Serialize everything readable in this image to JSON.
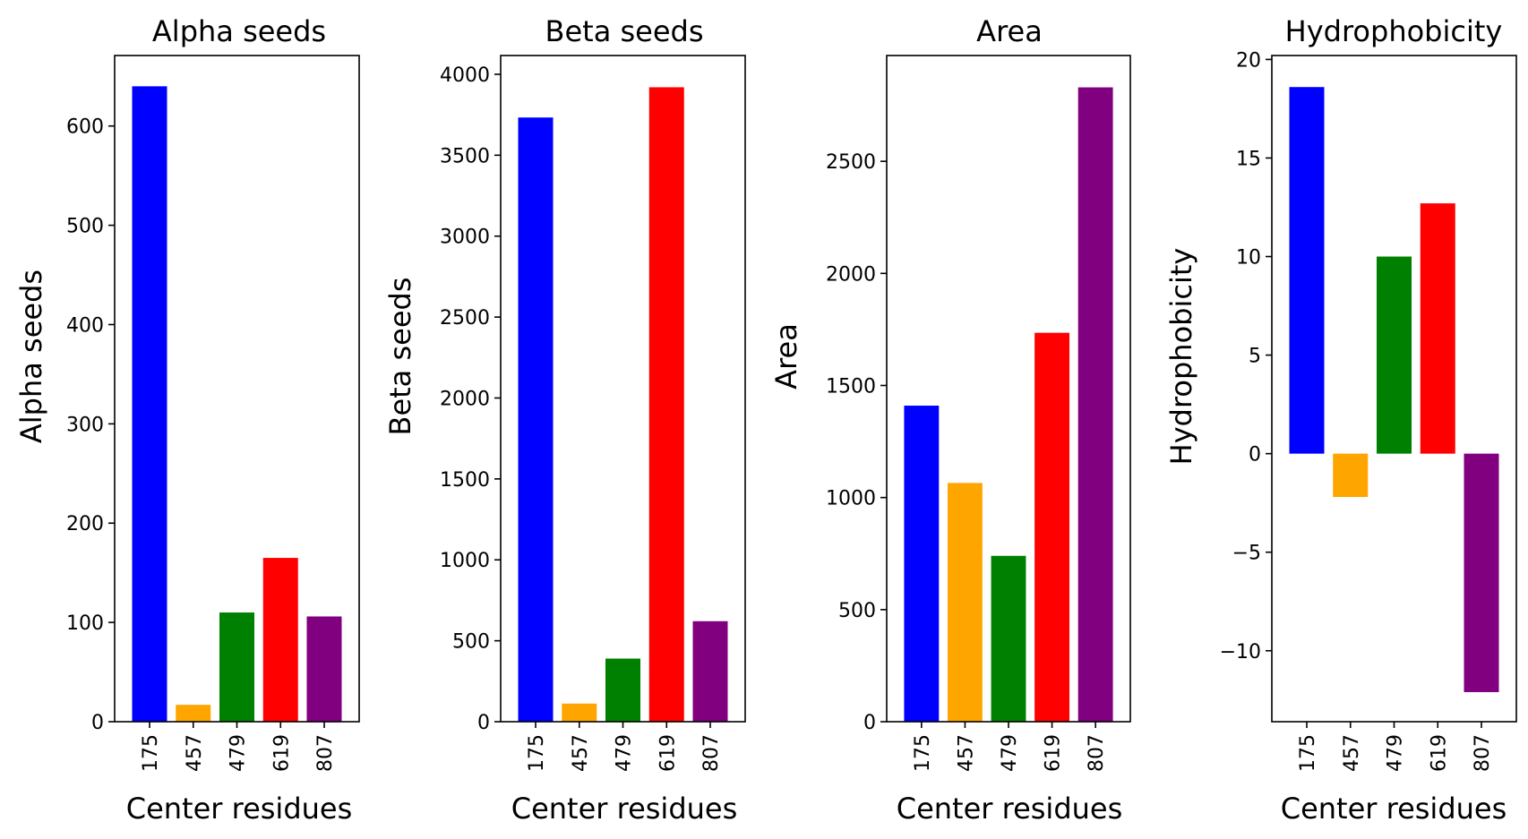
{
  "chart_data": [
    {
      "type": "bar",
      "title": "Alpha seeds",
      "xlabel": "Center residues",
      "ylabel": "Alpha seeds",
      "categories": [
        "175",
        "457",
        "479",
        "619",
        "807"
      ],
      "values": [
        640,
        17,
        110,
        165,
        106
      ],
      "colors": [
        "#0000ff",
        "#ffa500",
        "#008000",
        "#ff0000",
        "#800080"
      ],
      "ylim": [
        0,
        671
      ],
      "yticks": [
        0,
        100,
        200,
        300,
        400,
        500,
        600
      ],
      "ytick_labels": [
        "0",
        "100",
        "200",
        "300",
        "400",
        "500",
        "600"
      ],
      "grid": false,
      "legend": "none"
    },
    {
      "type": "bar",
      "title": "Beta seeds",
      "xlabel": "Center residues",
      "ylabel": "Beta seeds",
      "categories": [
        "175",
        "457",
        "479",
        "619",
        "807"
      ],
      "values": [
        3733,
        112,
        390,
        3920,
        621
      ],
      "colors": [
        "#0000ff",
        "#ffa500",
        "#008000",
        "#ff0000",
        "#800080"
      ],
      "ylim": [
        0,
        4116
      ],
      "yticks": [
        0,
        500,
        1000,
        1500,
        2000,
        2500,
        3000,
        3500,
        4000
      ],
      "ytick_labels": [
        "0",
        "500",
        "1000",
        "1500",
        "2000",
        "2500",
        "3000",
        "3500",
        "4000"
      ],
      "grid": false,
      "legend": "none"
    },
    {
      "type": "bar",
      "title": "Area",
      "xlabel": "Center residues",
      "ylabel": "Area",
      "categories": [
        "175",
        "457",
        "479",
        "619",
        "807"
      ],
      "values": [
        1410,
        1065,
        740,
        1735,
        2830
      ],
      "colors": [
        "#0000ff",
        "#ffa500",
        "#008000",
        "#ff0000",
        "#800080"
      ],
      "ylim": [
        0,
        2972
      ],
      "yticks": [
        0,
        500,
        1000,
        1500,
        2000,
        2500
      ],
      "ytick_labels": [
        "0",
        "500",
        "1000",
        "1500",
        "2000",
        "2500"
      ],
      "grid": false,
      "legend": "none"
    },
    {
      "type": "bar",
      "title": "Hydrophobicity",
      "xlabel": "Center residues",
      "ylabel": "Hydrophobicity",
      "categories": [
        "175",
        "457",
        "479",
        "619",
        "807"
      ],
      "values": [
        18.6,
        -2.2,
        10.0,
        12.7,
        -12.1
      ],
      "colors": [
        "#0000ff",
        "#ffa500",
        "#008000",
        "#ff0000",
        "#800080"
      ],
      "ylim": [
        -13.6,
        20.2
      ],
      "yticks": [
        -10,
        -5,
        0,
        5,
        10,
        15,
        20
      ],
      "ytick_labels": [
        "−10",
        "−5",
        "0",
        "5",
        "10",
        "15",
        "20"
      ],
      "grid": false,
      "legend": "none"
    }
  ]
}
